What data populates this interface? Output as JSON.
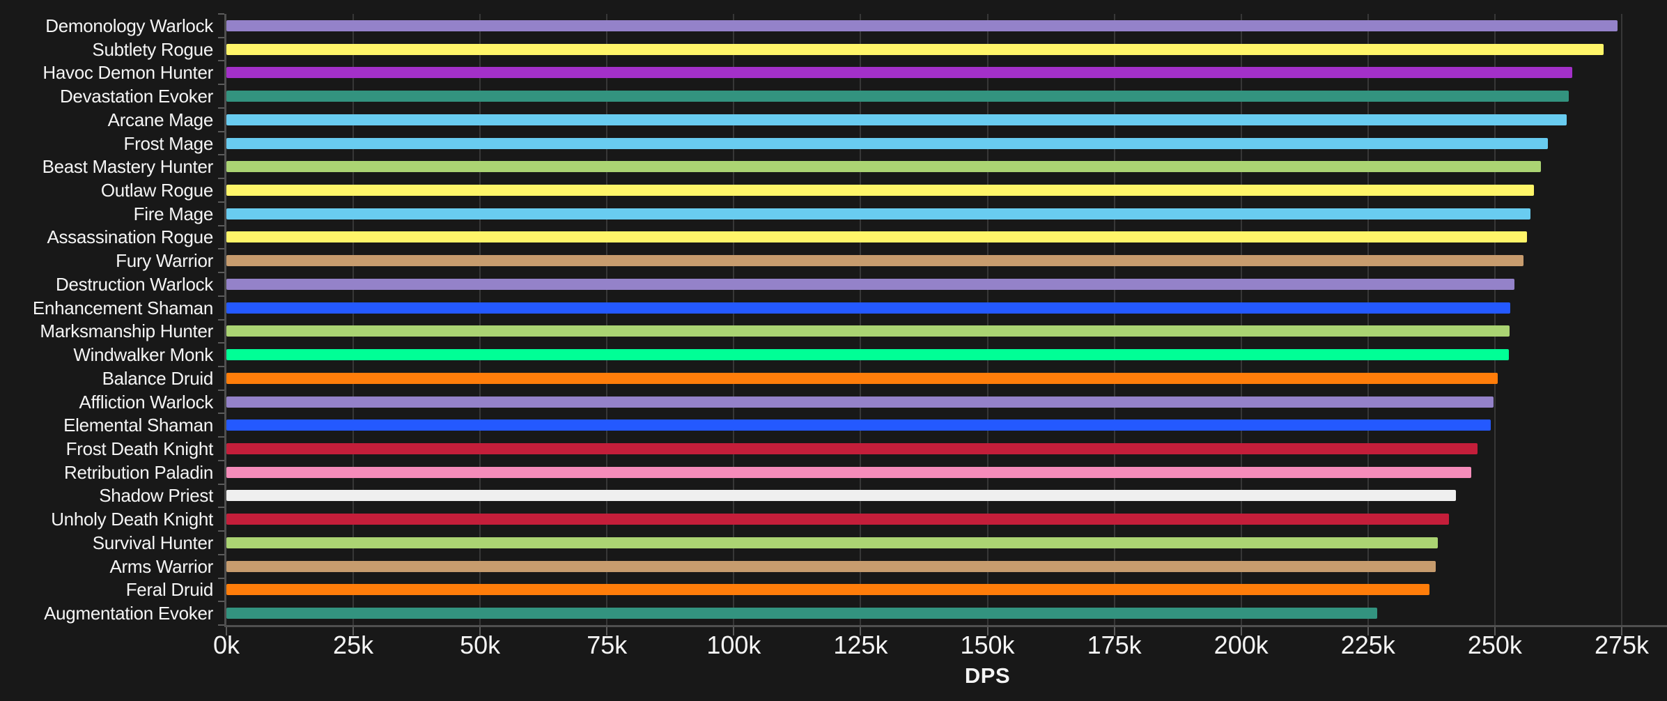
{
  "style": {
    "page_bg": "#181818",
    "grid_color": "#373737",
    "axis_color": "#4f4f4f",
    "tick_color": "#5c5c5c",
    "text_color": "#f5f5f5"
  },
  "chart_data": {
    "type": "bar",
    "orientation": "horizontal",
    "title": "",
    "xlabel": "DPS",
    "ylabel": "",
    "value_unit": "k DPS",
    "xlim_k": [
      0,
      284
    ],
    "x_tick_step_k": 25,
    "x_tick_labels": [
      "0k",
      "25k",
      "50k",
      "75k",
      "100k",
      "125k",
      "150k",
      "175k",
      "200k",
      "225k",
      "250k",
      "275k"
    ],
    "grid": true,
    "legend": false,
    "bars": [
      {
        "label": "Demonology Warlock",
        "dps_k": 274.2,
        "color": "#9482C9"
      },
      {
        "label": "Subtlety Rogue",
        "dps_k": 271.4,
        "color": "#FFF569"
      },
      {
        "label": "Havoc Demon Hunter",
        "dps_k": 265.2,
        "color": "#A330C9"
      },
      {
        "label": "Devastation Evoker",
        "dps_k": 264.6,
        "color": "#33937F"
      },
      {
        "label": "Arcane Mage",
        "dps_k": 264.2,
        "color": "#69CCF0"
      },
      {
        "label": "Frost Mage",
        "dps_k": 260.4,
        "color": "#69CCF0"
      },
      {
        "label": "Beast Mastery Hunter",
        "dps_k": 259.1,
        "color": "#ABD473"
      },
      {
        "label": "Outlaw Rogue",
        "dps_k": 257.7,
        "color": "#FFF569"
      },
      {
        "label": "Fire Mage",
        "dps_k": 257.0,
        "color": "#69CCF0"
      },
      {
        "label": "Assassination Rogue",
        "dps_k": 256.3,
        "color": "#FFF569"
      },
      {
        "label": "Fury Warrior",
        "dps_k": 255.6,
        "color": "#C79C6E"
      },
      {
        "label": "Destruction Warlock",
        "dps_k": 253.9,
        "color": "#9482C9"
      },
      {
        "label": "Enhancement Shaman",
        "dps_k": 253.0,
        "color": "#2459FF"
      },
      {
        "label": "Marksmanship Hunter",
        "dps_k": 252.9,
        "color": "#ABD473"
      },
      {
        "label": "Windwalker Monk",
        "dps_k": 252.8,
        "color": "#00FF96"
      },
      {
        "label": "Balance Druid",
        "dps_k": 250.5,
        "color": "#FF7D0A"
      },
      {
        "label": "Affliction Warlock",
        "dps_k": 249.8,
        "color": "#9482C9"
      },
      {
        "label": "Elemental Shaman",
        "dps_k": 249.2,
        "color": "#2459FF"
      },
      {
        "label": "Frost Death Knight",
        "dps_k": 246.6,
        "color": "#C41E3A"
      },
      {
        "label": "Retribution Paladin",
        "dps_k": 245.3,
        "color": "#F58CBA"
      },
      {
        "label": "Shadow Priest",
        "dps_k": 242.3,
        "color": "#EFEFEF"
      },
      {
        "label": "Unholy Death Knight",
        "dps_k": 240.9,
        "color": "#C41E3A"
      },
      {
        "label": "Survival Hunter",
        "dps_k": 238.8,
        "color": "#ABD473"
      },
      {
        "label": "Arms Warrior",
        "dps_k": 238.4,
        "color": "#C79C6E"
      },
      {
        "label": "Feral Druid",
        "dps_k": 237.1,
        "color": "#FF7D0A"
      },
      {
        "label": "Augmentation Evoker",
        "dps_k": 226.8,
        "color": "#33937F"
      }
    ]
  }
}
